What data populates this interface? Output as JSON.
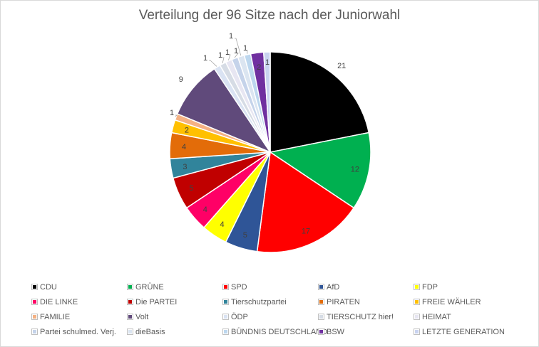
{
  "chart_data": {
    "type": "pie",
    "title": "Verteilung der 96 Sitze nach der Juniorwahl",
    "start_angle_deg": 0,
    "direction": "clockwise",
    "legend_position": "bottom",
    "slices": [
      {
        "name": "CDU",
        "value": 21,
        "color": "#000000"
      },
      {
        "name": "GRÜNE",
        "value": 12,
        "color": "#00b050"
      },
      {
        "name": "SPD",
        "value": 17,
        "color": "#ff0000"
      },
      {
        "name": "AfD",
        "value": 5,
        "color": "#2f5597"
      },
      {
        "name": "FDP",
        "value": 4,
        "color": "#ffff00"
      },
      {
        "name": "DIE LINKE",
        "value": 4,
        "color": "#ff0066"
      },
      {
        "name": "Die PARTEI",
        "value": 5,
        "color": "#c00000"
      },
      {
        "name": "Tierschutzpartei",
        "value": 3,
        "color": "#31849b"
      },
      {
        "name": "PIRATEN",
        "value": 4,
        "color": "#e36c09"
      },
      {
        "name": "FREIE WÄHLER",
        "value": 2,
        "color": "#ffc000"
      },
      {
        "name": "FAMILIE",
        "value": 1,
        "color": "#f4b183"
      },
      {
        "name": "Volt",
        "value": 9,
        "color": "#604a7b"
      },
      {
        "name": "ÖDP",
        "value": 1,
        "color": "#dae3f3"
      },
      {
        "name": "TIERSCHUTZ hier!",
        "value": 1,
        "color": "#d6dce5"
      },
      {
        "name": "HEIMAT",
        "value": 1,
        "color": "#e7e6f2"
      },
      {
        "name": "Partei schulmed. Verj.",
        "value": 1,
        "color": "#c5d3ea"
      },
      {
        "name": "dieBasis",
        "value": 1,
        "color": "#dbe5f1"
      },
      {
        "name": "BÜNDNIS DEUTSCHLAND",
        "value": 1,
        "color": "#bdd7ee"
      },
      {
        "name": "BSW",
        "value": 2,
        "color": "#7030a0"
      },
      {
        "name": "LETZTE GENERATION",
        "value": 1,
        "color": "#c9d3f0"
      }
    ]
  }
}
